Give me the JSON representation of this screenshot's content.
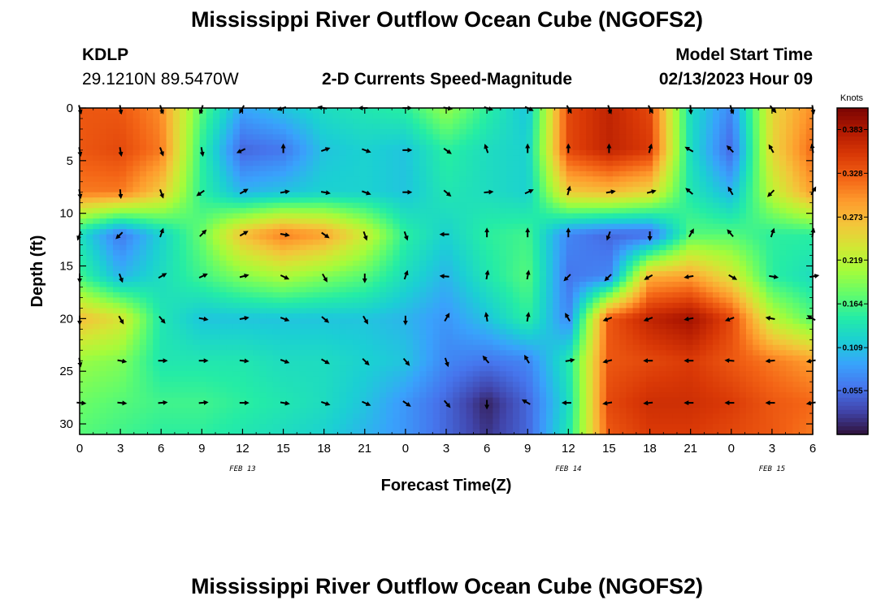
{
  "header": {
    "title": "Mississippi River Outflow Ocean Cube (NGOFS2)",
    "station": "KDLP",
    "coordinates": "29.1210N  89.5470W",
    "subtitle": "2-D Currents Speed-Magnitude",
    "model_start_label": "Model Start Time",
    "model_start_value": "02/13/2023 Hour 09"
  },
  "footer": {
    "title": "Mississippi River Outflow Ocean Cube (NGOFS2)"
  },
  "chart_data": {
    "type": "heatmap",
    "title": "2-D Currents Speed-Magnitude",
    "xlabel": "Forecast Time(Z)",
    "ylabel": "Depth (ft)",
    "x_ticks": [
      "0",
      "3",
      "6",
      "9",
      "12",
      "15",
      "18",
      "21",
      "0",
      "3",
      "6",
      "9",
      "12",
      "15",
      "18",
      "21",
      "0",
      "3",
      "6"
    ],
    "x_hours": [
      0,
      3,
      6,
      9,
      12,
      15,
      18,
      21,
      24,
      27,
      30,
      33,
      36,
      39,
      42,
      45,
      48,
      51,
      54
    ],
    "date_labels": [
      {
        "text": "FEB 13",
        "hour": 12
      },
      {
        "text": "FEB 14",
        "hour": 36
      },
      {
        "text": "FEB 15",
        "hour": 51
      }
    ],
    "y_ticks": [
      0,
      5,
      10,
      15,
      20,
      25,
      30
    ],
    "ylim": [
      0,
      31
    ],
    "xlim": [
      0,
      54
    ],
    "colorbar": {
      "label": "Knots",
      "ticks": [
        "0.383",
        "0.328",
        "0.273",
        "0.219",
        "0.164",
        "0.109",
        "0.055"
      ],
      "tick_values": [
        0.383,
        0.328,
        0.273,
        0.219,
        0.164,
        0.109,
        0.055
      ],
      "range": [
        0.0,
        0.41
      ],
      "colors": [
        "#30123b",
        "#4145ab",
        "#4675ed",
        "#39a2fc",
        "#1bcfd4",
        "#24eca6",
        "#61fc6c",
        "#a4fc3b",
        "#d1e834",
        "#f3c63a",
        "#fe9b2d",
        "#f36315",
        "#d93806",
        "#b11901",
        "#7a0403"
      ]
    },
    "speed_grid": {
      "hours": [
        0,
        3,
        6,
        9,
        12,
        15,
        18,
        21,
        24,
        27,
        30,
        33,
        36,
        39,
        42,
        45,
        48,
        51,
        54
      ],
      "depths": [
        0,
        4,
        8,
        12,
        16,
        20,
        24,
        28,
        31
      ],
      "values": [
        [
          0.33,
          0.33,
          0.3,
          0.17,
          0.09,
          0.11,
          0.13,
          0.14,
          0.15,
          0.2,
          0.15,
          0.11,
          0.34,
          0.37,
          0.34,
          0.13,
          0.07,
          0.25,
          0.3
        ],
        [
          0.33,
          0.34,
          0.31,
          0.15,
          0.05,
          0.06,
          0.11,
          0.12,
          0.11,
          0.15,
          0.13,
          0.12,
          0.34,
          0.37,
          0.35,
          0.13,
          0.05,
          0.25,
          0.32
        ],
        [
          0.31,
          0.31,
          0.26,
          0.15,
          0.1,
          0.11,
          0.12,
          0.12,
          0.11,
          0.14,
          0.13,
          0.12,
          0.26,
          0.27,
          0.25,
          0.14,
          0.1,
          0.22,
          0.29
        ],
        [
          0.13,
          0.06,
          0.12,
          0.18,
          0.27,
          0.31,
          0.29,
          0.23,
          0.15,
          0.12,
          0.15,
          0.16,
          0.07,
          0.05,
          0.05,
          0.17,
          0.17,
          0.15,
          0.15
        ],
        [
          0.16,
          0.1,
          0.13,
          0.16,
          0.19,
          0.21,
          0.19,
          0.17,
          0.13,
          0.1,
          0.14,
          0.17,
          0.06,
          0.07,
          0.28,
          0.29,
          0.24,
          0.15,
          0.13
        ],
        [
          0.27,
          0.24,
          0.14,
          0.11,
          0.11,
          0.11,
          0.11,
          0.11,
          0.1,
          0.08,
          0.11,
          0.15,
          0.07,
          0.33,
          0.37,
          0.39,
          0.34,
          0.22,
          0.17
        ],
        [
          0.2,
          0.19,
          0.14,
          0.14,
          0.14,
          0.13,
          0.13,
          0.12,
          0.11,
          0.07,
          0.06,
          0.07,
          0.14,
          0.33,
          0.34,
          0.35,
          0.33,
          0.31,
          0.29
        ],
        [
          0.18,
          0.17,
          0.16,
          0.16,
          0.15,
          0.14,
          0.13,
          0.11,
          0.08,
          0.05,
          0.01,
          0.05,
          0.13,
          0.34,
          0.36,
          0.36,
          0.35,
          0.33,
          0.32
        ],
        [
          0.17,
          0.16,
          0.15,
          0.15,
          0.14,
          0.13,
          0.12,
          0.1,
          0.08,
          0.05,
          0.02,
          0.05,
          0.14,
          0.33,
          0.35,
          0.35,
          0.34,
          0.33,
          0.31
        ]
      ]
    },
    "vectors": {
      "depths": [
        0,
        4,
        8,
        12,
        16,
        20,
        24,
        28
      ],
      "hours": [
        0,
        3,
        6,
        9,
        12,
        15,
        18,
        21,
        24,
        27,
        30,
        33,
        36,
        39,
        42,
        45,
        48,
        51,
        54
      ],
      "directions_deg": [
        [
          165,
          170,
          160,
          200,
          210,
          250,
          280,
          270,
          90,
          100,
          110,
          115,
          150,
          160,
          150,
          175,
          160,
          140,
          170
        ],
        [
          170,
          170,
          160,
          170,
          245,
          0,
          70,
          110,
          90,
          125,
          340,
          0,
          0,
          0,
          15,
          300,
          315,
          330,
          350
        ],
        [
          170,
          175,
          160,
          235,
          60,
          80,
          100,
          110,
          90,
          130,
          85,
          65,
          15,
          80,
          75,
          310,
          330,
          225,
          30
        ],
        [
          200,
          225,
          20,
          45,
          60,
          100,
          125,
          160,
          160,
          270,
          0,
          0,
          0,
          200,
          180,
          30,
          320,
          20,
          10
        ],
        [
          180,
          160,
          60,
          65,
          75,
          115,
          150,
          180,
          20,
          275,
          10,
          10,
          225,
          225,
          240,
          260,
          120,
          100,
          80
        ],
        [
          180,
          150,
          140,
          100,
          80,
          110,
          130,
          150,
          180,
          30,
          350,
          10,
          330,
          250,
          250,
          260,
          250,
          280,
          300
        ],
        [
          170,
          100,
          90,
          90,
          95,
          110,
          120,
          135,
          140,
          160,
          320,
          330,
          80,
          255,
          270,
          270,
          275,
          265,
          260
        ],
        [
          95,
          95,
          85,
          85,
          90,
          100,
          110,
          115,
          125,
          140,
          180,
          300,
          270,
          260,
          265,
          270,
          270,
          270,
          260
        ]
      ]
    }
  }
}
